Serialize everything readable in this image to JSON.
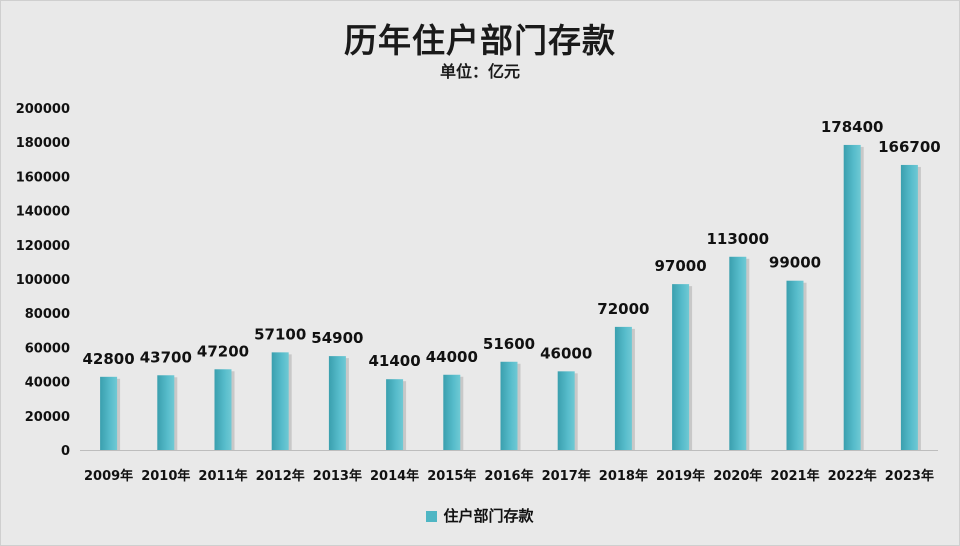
{
  "chart_data": {
    "type": "bar",
    "title": "历年住户部门存款",
    "subtitle": "单位：亿元",
    "categories": [
      "2009年",
      "2010年",
      "2011年",
      "2012年",
      "2013年",
      "2014年",
      "2015年",
      "2016年",
      "2017年",
      "2018年",
      "2019年",
      "2020年",
      "2021年",
      "2022年",
      "2023年"
    ],
    "series": [
      {
        "name": "住户部门存款",
        "values": [
          42800,
          43700,
          47200,
          57100,
          54900,
          41400,
          44000,
          51600,
          46000,
          72000,
          97000,
          113000,
          99000,
          178400,
          166700
        ]
      }
    ],
    "ylim": [
      0,
      200000
    ],
    "yticks": [
      0,
      20000,
      40000,
      60000,
      80000,
      100000,
      120000,
      140000,
      160000,
      180000,
      200000
    ],
    "grid": false,
    "legend": "bottom",
    "colors": {
      "bar": "#4fb6c4",
      "bar_dark": "#3a9fae"
    }
  }
}
